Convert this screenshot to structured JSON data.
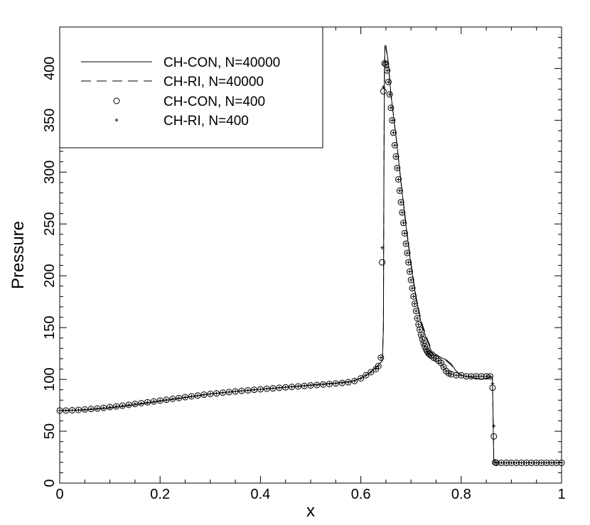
{
  "chart_data": {
    "type": "line",
    "title": "",
    "xlabel": "x",
    "ylabel": "Pressure",
    "xlim": [
      0,
      1
    ],
    "ylim": [
      0,
      440
    ],
    "x_ticks": [
      0,
      0.2,
      0.4,
      0.6,
      0.8,
      1
    ],
    "x_tick_labels": [
      "0",
      "0.2",
      "0.4",
      "0.6",
      "0.8",
      "1"
    ],
    "y_ticks": [
      0,
      50,
      100,
      150,
      200,
      250,
      300,
      350,
      400
    ],
    "y_tick_labels": [
      "0",
      "50",
      "100",
      "150",
      "200",
      "250",
      "300",
      "350",
      "400"
    ],
    "grid": false,
    "legend_position": "top-left",
    "series": [
      {
        "name": "CH-CON, N=40000",
        "style": "solid",
        "x": [
          0,
          0.05,
          0.1,
          0.15,
          0.2,
          0.25,
          0.3,
          0.35,
          0.4,
          0.45,
          0.5,
          0.55,
          0.58,
          0.6,
          0.62,
          0.635,
          0.643,
          0.645,
          0.646,
          0.647,
          0.648,
          0.65,
          0.655,
          0.66,
          0.67,
          0.68,
          0.69,
          0.7,
          0.71,
          0.72,
          0.73,
          0.74,
          0.745,
          0.748,
          0.75,
          0.752,
          0.76,
          0.77,
          0.78,
          0.79,
          0.8,
          0.81,
          0.82,
          0.83,
          0.84,
          0.85,
          0.86,
          0.862,
          0.863,
          0.865,
          0.87,
          0.9,
          0.95,
          1.0
        ],
        "y": [
          70,
          70.5,
          72.5,
          75.5,
          79,
          82.5,
          86,
          88.5,
          90.5,
          92.5,
          94.5,
          96.5,
          98,
          101,
          107,
          114,
          118,
          150,
          300,
          395,
          422,
          422,
          405,
          375,
          335,
          290,
          248,
          210,
          178,
          155,
          140,
          128,
          124,
          123,
          124,
          123,
          121,
          119,
          115,
          108,
          104,
          103,
          102,
          101,
          100,
          101,
          102,
          102,
          80,
          20,
          19.5,
          19.5,
          19.5,
          19.5
        ]
      },
      {
        "name": "CH-RI, N=40000",
        "style": "dashed",
        "x": [
          0,
          0.05,
          0.1,
          0.15,
          0.2,
          0.25,
          0.3,
          0.35,
          0.4,
          0.45,
          0.5,
          0.55,
          0.58,
          0.6,
          0.62,
          0.635,
          0.643,
          0.645,
          0.646,
          0.647,
          0.648,
          0.65,
          0.655,
          0.66,
          0.67,
          0.68,
          0.69,
          0.7,
          0.71,
          0.72,
          0.73,
          0.74,
          0.745,
          0.75,
          0.76,
          0.77,
          0.78,
          0.79,
          0.8,
          0.81,
          0.82,
          0.83,
          0.84,
          0.85,
          0.86,
          0.862,
          0.863,
          0.865,
          0.87,
          0.9,
          0.95,
          1.0
        ],
        "y": [
          70,
          70.5,
          72.5,
          75.5,
          79,
          82.5,
          86,
          88.5,
          90.5,
          92.5,
          94.5,
          96.5,
          98,
          101,
          107,
          114,
          118,
          150,
          300,
          394,
          420,
          420,
          404,
          374,
          335,
          291,
          250,
          212,
          180,
          157,
          142,
          130,
          126,
          124,
          121,
          118,
          114,
          108,
          104,
          103,
          102,
          101,
          100,
          101,
          102,
          102,
          80,
          20,
          19.5,
          19.5,
          19.5,
          19.5
        ]
      },
      {
        "name": "CH-CON, N=400",
        "marker": "circle",
        "x": [
          0,
          0.0125,
          0.025,
          0.0375,
          0.05,
          0.0625,
          0.075,
          0.0875,
          0.1,
          0.1125,
          0.125,
          0.1375,
          0.15,
          0.1625,
          0.175,
          0.1875,
          0.2,
          0.2125,
          0.225,
          0.2375,
          0.25,
          0.2625,
          0.275,
          0.2875,
          0.3,
          0.3125,
          0.325,
          0.3375,
          0.35,
          0.3625,
          0.375,
          0.3875,
          0.4,
          0.4125,
          0.425,
          0.4375,
          0.45,
          0.4625,
          0.475,
          0.4875,
          0.5,
          0.5125,
          0.525,
          0.5375,
          0.55,
          0.5625,
          0.575,
          0.5875,
          0.6,
          0.61,
          0.62,
          0.63,
          0.635,
          0.64,
          0.6425,
          0.645,
          0.6475,
          0.65,
          0.6525,
          0.655,
          0.6575,
          0.66,
          0.6625,
          0.665,
          0.6675,
          0.67,
          0.6725,
          0.675,
          0.6775,
          0.68,
          0.6825,
          0.685,
          0.6875,
          0.69,
          0.6925,
          0.695,
          0.6975,
          0.7,
          0.7025,
          0.705,
          0.7075,
          0.71,
          0.7125,
          0.715,
          0.7175,
          0.72,
          0.7225,
          0.725,
          0.7275,
          0.73,
          0.7325,
          0.735,
          0.7375,
          0.74,
          0.745,
          0.75,
          0.755,
          0.76,
          0.765,
          0.77,
          0.775,
          0.78,
          0.79,
          0.8,
          0.81,
          0.82,
          0.83,
          0.84,
          0.85,
          0.8575,
          0.8625,
          0.865,
          0.8675,
          0.87,
          0.88,
          0.89,
          0.9,
          0.91,
          0.92,
          0.93,
          0.94,
          0.95,
          0.96,
          0.97,
          0.98,
          0.99,
          1.0
        ],
        "y": [
          70,
          70,
          70.3,
          70.6,
          71,
          71.5,
          72,
          72.6,
          73.3,
          74,
          74.7,
          75.5,
          76.3,
          77.1,
          78,
          78.8,
          79.6,
          80.4,
          81.3,
          82.1,
          82.9,
          83.7,
          84.5,
          85.3,
          86,
          86.6,
          87.2,
          87.8,
          88.4,
          89,
          89.5,
          90,
          90.5,
          91,
          91.4,
          91.9,
          92.4,
          92.8,
          93.3,
          93.7,
          94.2,
          94.6,
          95.1,
          95.6,
          96.1,
          96.6,
          97.3,
          98.5,
          101,
          104,
          107,
          110,
          113,
          121,
          213,
          378,
          405,
          404,
          398,
          387,
          375,
          362,
          350,
          338,
          326,
          315,
          304,
          293,
          282,
          271,
          261,
          251,
          241,
          231,
          222,
          213,
          204,
          196,
          188,
          180,
          173,
          166,
          159,
          153,
          148,
          143,
          139,
          135,
          132,
          129,
          127,
          125,
          124,
          123,
          121,
          120,
          118,
          116,
          112,
          108,
          106,
          105,
          104,
          104,
          103,
          103,
          103,
          103,
          103,
          103,
          92,
          45,
          20,
          19.5,
          19.5,
          19.5,
          19.5,
          19.5,
          19.5,
          19.5,
          19.5,
          19.5,
          19.5,
          19.5,
          19.5,
          19.5,
          19.5
        ]
      },
      {
        "name": "CH-RI, N=400",
        "marker": "plus",
        "x": [
          0,
          0.0125,
          0.025,
          0.0375,
          0.05,
          0.0625,
          0.075,
          0.0875,
          0.1,
          0.1125,
          0.125,
          0.1375,
          0.15,
          0.1625,
          0.175,
          0.1875,
          0.2,
          0.2125,
          0.225,
          0.2375,
          0.25,
          0.2625,
          0.275,
          0.2875,
          0.3,
          0.3125,
          0.325,
          0.3375,
          0.35,
          0.3625,
          0.375,
          0.3875,
          0.4,
          0.4125,
          0.425,
          0.4375,
          0.45,
          0.4625,
          0.475,
          0.4875,
          0.5,
          0.5125,
          0.525,
          0.5375,
          0.55,
          0.5625,
          0.575,
          0.5875,
          0.6,
          0.61,
          0.62,
          0.63,
          0.635,
          0.64,
          0.6425,
          0.645,
          0.6475,
          0.65,
          0.6525,
          0.655,
          0.6575,
          0.66,
          0.6625,
          0.665,
          0.6675,
          0.67,
          0.6725,
          0.675,
          0.6775,
          0.68,
          0.6825,
          0.685,
          0.6875,
          0.69,
          0.6925,
          0.695,
          0.6975,
          0.7,
          0.7025,
          0.705,
          0.7075,
          0.71,
          0.7125,
          0.715,
          0.7175,
          0.72,
          0.7225,
          0.725,
          0.7275,
          0.73,
          0.7325,
          0.735,
          0.7375,
          0.74,
          0.745,
          0.75,
          0.755,
          0.76,
          0.765,
          0.77,
          0.775,
          0.78,
          0.79,
          0.8,
          0.81,
          0.82,
          0.83,
          0.84,
          0.85,
          0.8575,
          0.8625,
          0.865,
          0.8675,
          0.87,
          0.88,
          0.89,
          0.9,
          0.91,
          0.92,
          0.93,
          0.94,
          0.95,
          0.96,
          0.97,
          0.98,
          0.99,
          1.0
        ],
        "y": [
          70,
          70,
          70.3,
          70.6,
          71,
          71.5,
          72,
          72.6,
          73.3,
          74,
          74.7,
          75.5,
          76.3,
          77.1,
          78,
          78.8,
          79.6,
          80.4,
          81.3,
          82.1,
          82.9,
          83.7,
          84.5,
          85.3,
          86,
          86.6,
          87.2,
          87.8,
          88.4,
          89,
          89.5,
          90,
          90.5,
          91,
          91.4,
          91.9,
          92.4,
          92.8,
          93.3,
          93.7,
          94.2,
          94.6,
          95.1,
          95.6,
          96.1,
          96.6,
          97.3,
          98.5,
          101,
          104,
          107,
          110,
          113,
          121,
          227,
          382,
          406,
          404,
          398,
          387,
          375,
          362,
          350,
          338,
          326,
          315,
          304,
          293,
          282,
          271,
          261,
          251,
          241,
          231,
          222,
          213,
          204,
          196,
          188,
          180,
          173,
          166,
          159,
          153,
          148,
          143,
          139,
          135,
          132,
          129,
          127,
          125,
          124,
          123,
          121,
          120,
          118,
          116,
          112,
          108,
          106,
          105,
          104,
          104,
          103,
          103,
          103,
          103,
          103,
          103,
          96,
          55,
          20,
          19.5,
          19.5,
          19.5,
          19.5,
          19.5,
          19.5,
          19.5,
          19.5,
          19.5,
          19.5,
          19.5,
          19.5,
          19.5,
          19.5
        ]
      }
    ]
  }
}
